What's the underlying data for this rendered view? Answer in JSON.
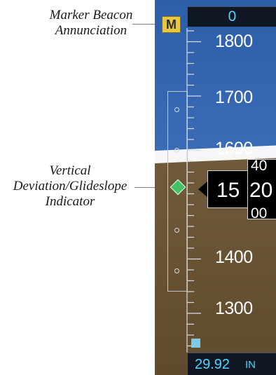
{
  "callouts": {
    "marker_beacon": [
      "Marker Beacon",
      "Annunciation"
    ],
    "vertical_deviation": [
      "Vertical",
      "Deviation/Glideslope",
      "Indicator"
    ]
  },
  "marker_annunciator": {
    "label": "M",
    "color": "#e8c642"
  },
  "selected_altitude": {
    "value": "0",
    "color": "#4fd6ff"
  },
  "altitude_tape": {
    "labels": [
      "1800",
      "1700",
      "1600",
      "1400",
      "1300"
    ],
    "sky_color": "#3466b2",
    "ground_color": "#6b5536"
  },
  "current_altitude": {
    "hundreds": "15",
    "roller_top": "40",
    "roller_main": "20",
    "roller_bottom": "00"
  },
  "glideslope": {
    "indicator_icon": "green-diamond",
    "color": "#45c266"
  },
  "barometric_setting": {
    "value": "29.92",
    "unit": "IN"
  }
}
